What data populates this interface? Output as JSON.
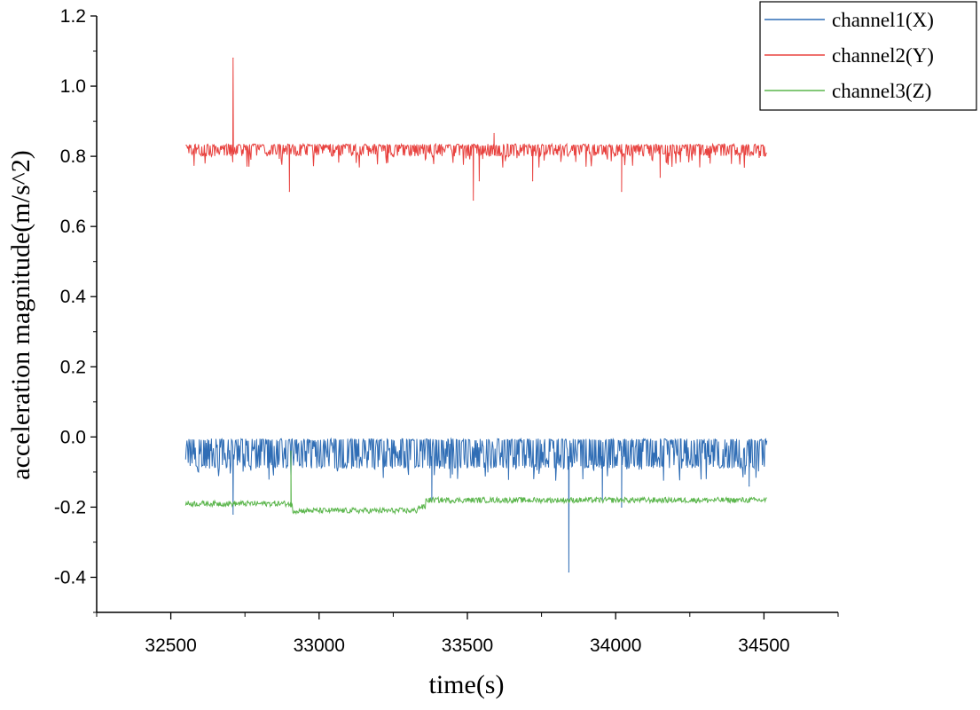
{
  "chart_data": {
    "type": "line",
    "title": "",
    "xlabel": "time(s)",
    "ylabel": "acceleration magnitude(m/s^2)",
    "xlim": [
      32250,
      34750
    ],
    "ylim": [
      -0.5,
      1.2
    ],
    "x_ticks": [
      32500,
      33000,
      33500,
      34000,
      34500
    ],
    "x_tick_labels": [
      "32500",
      "33000",
      "33500",
      "34000",
      "34500"
    ],
    "y_ticks": [
      -0.4,
      -0.2,
      0.0,
      0.2,
      0.4,
      0.6,
      0.8,
      1.0,
      1.2
    ],
    "y_tick_labels": [
      "-0.4",
      "-0.2",
      "0.0",
      "0.2",
      "0.4",
      "0.6",
      "0.8",
      "1.0",
      "1.2"
    ],
    "grid": false,
    "legend_position": "top-right",
    "x_range": [
      32550,
      34510
    ],
    "series": [
      {
        "name": "channel1(X)",
        "color": "#2f6db5",
        "baseline": -0.055,
        "noise_band": [
          -0.09,
          -0.005
        ],
        "spikes": [
          {
            "x": 32710,
            "y": -0.22
          },
          {
            "x": 33380,
            "y": -0.18
          },
          {
            "x": 33842,
            "y": -0.385
          },
          {
            "x": 33955,
            "y": -0.18
          },
          {
            "x": 34020,
            "y": -0.2
          },
          {
            "x": 34450,
            "y": -0.14
          }
        ]
      },
      {
        "name": "channel2(Y)",
        "color": "#e8423f",
        "baseline": 0.82,
        "noise_band": [
          0.8,
          0.835
        ],
        "spikes": [
          {
            "x": 32710,
            "y": 1.08
          },
          {
            "x": 32900,
            "y": 0.7
          },
          {
            "x": 33520,
            "y": 0.675
          },
          {
            "x": 33540,
            "y": 0.73
          },
          {
            "x": 33590,
            "y": 0.865
          },
          {
            "x": 33720,
            "y": 0.73
          },
          {
            "x": 34020,
            "y": 0.7
          },
          {
            "x": 34150,
            "y": 0.74
          }
        ]
      },
      {
        "name": "channel3(Z)",
        "color": "#5ab54b",
        "segments": [
          {
            "x_start": 32550,
            "x_end": 32910,
            "y": -0.19
          },
          {
            "x_start": 32910,
            "x_end": 33330,
            "y": -0.21
          },
          {
            "x_start": 33330,
            "x_end": 33360,
            "y": -0.2
          },
          {
            "x_start": 33360,
            "x_end": 34510,
            "y": -0.18
          }
        ],
        "spikes": [
          {
            "x": 32905,
            "y": -0.04
          }
        ]
      }
    ]
  }
}
